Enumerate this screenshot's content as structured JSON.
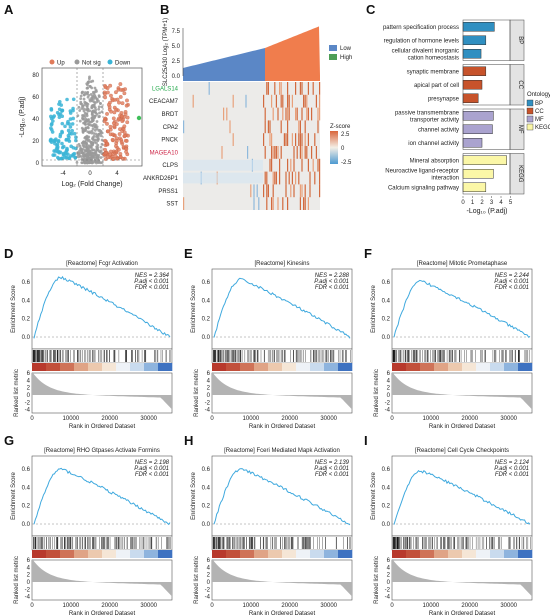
{
  "panels": {
    "A": {
      "label": "A"
    },
    "B": {
      "label": "B"
    },
    "C": {
      "label": "C"
    },
    "D": {
      "label": "D"
    },
    "E": {
      "label": "E"
    },
    "F": {
      "label": "F"
    },
    "G": {
      "label": "G"
    },
    "H": {
      "label": "H"
    },
    "I": {
      "label": "I"
    }
  },
  "volcano": {
    "legend": [
      "Up",
      "Not sig",
      "Down"
    ],
    "colors": {
      "up": "#e07b5a",
      "notsig": "#9a9a9a",
      "down": "#39b4d6"
    },
    "xlabel": "Log₂ (Fold Change)",
    "ylabel": "-Log₁₀ (P.adj)",
    "xticks": [
      "-4",
      "0",
      "4"
    ],
    "yticks": [
      "0",
      "20",
      "40",
      "60",
      "80"
    ]
  },
  "heatmap": {
    "top_ylabel": "SLC25A30 Log₂ (TPM+1)",
    "top_yticks": [
      "0.0",
      "2.5",
      "5.0",
      "7.5"
    ],
    "legend": [
      {
        "label": "Low",
        "color": "#5b87c6"
      },
      {
        "label": "High",
        "color": "#f07d4d"
      }
    ],
    "genes": [
      {
        "name": "LGALS14",
        "color": "#22a84a"
      },
      {
        "name": "CEACAM7",
        "color": "#222222"
      },
      {
        "name": "BRDT",
        "color": "#222222"
      },
      {
        "name": "CPA2",
        "color": "#222222"
      },
      {
        "name": "PNCK",
        "color": "#222222"
      },
      {
        "name": "MAGEA10",
        "color": "#cc2244"
      },
      {
        "name": "CLPS",
        "color": "#222222"
      },
      {
        "name": "ANKRD26P1",
        "color": "#222222"
      },
      {
        "name": "PRSS1",
        "color": "#222222"
      },
      {
        "name": "SST",
        "color": "#222222"
      }
    ],
    "zscore_title": "Z-score",
    "zscore_ticks": [
      "2.5",
      "0",
      "-2.5"
    ]
  },
  "enrichment": {
    "chart_data": {
      "type": "bar",
      "xlabel": "-Log₁₀ (P.adj)",
      "xticks": [
        "0",
        "1",
        "2",
        "3",
        "4",
        "5"
      ],
      "xlim": [
        0,
        5
      ],
      "groups": [
        {
          "name": "BP",
          "color": "#2f8fc1",
          "items": [
            {
              "term": "pattern specification process",
              "value": 3.3
            },
            {
              "term": "regulation of hormone levels",
              "value": 2.4
            },
            {
              "term": "cellular divalent inorganic cation homeostasis",
              "value": 1.9
            }
          ]
        },
        {
          "name": "CC",
          "color": "#c7532b",
          "items": [
            {
              "term": "synaptic membrane",
              "value": 2.4
            },
            {
              "term": "apical part of cell",
              "value": 2.0
            },
            {
              "term": "presynapse",
              "value": 1.6
            }
          ]
        },
        {
          "name": "MF",
          "color": "#aaa3cf",
          "items": [
            {
              "term": "passive transmembrane transporter activity",
              "value": 3.2
            },
            {
              "term": "channel activity",
              "value": 3.1
            },
            {
              "term": "ion channel activity",
              "value": 2.0
            }
          ]
        },
        {
          "name": "KEGG",
          "color": "#fbf7a7",
          "items": [
            {
              "term": "Mineral absorption",
              "value": 4.6
            },
            {
              "term": "Neuroactive ligand-receptor interaction",
              "value": 3.2
            },
            {
              "term": "Calcium signaling pathway",
              "value": 2.4
            }
          ]
        }
      ],
      "legend_title": "Ontology"
    }
  },
  "gsea_common": {
    "es_ylabel": "Enrichment Score",
    "rm_ylabel": "Ranked list metric",
    "xlabel": "Rank in Ordered Dataset",
    "xticks": [
      "0",
      "10000",
      "20000",
      "30000"
    ],
    "es_yticks": [
      "0.0",
      "0.2",
      "0.4",
      "0.6"
    ],
    "rm_yticks": [
      "6",
      "4",
      "2",
      "0",
      "-2",
      "-4"
    ],
    "line_color": "#3fa9de"
  },
  "gsea": [
    {
      "id": "D",
      "title": "[Reactome] Fcgr Activation",
      "nes": "NES = 2.364",
      "padj": "P.adj < 0.001",
      "fdr": "FDR < 0.001",
      "peak": 0.65
    },
    {
      "id": "E",
      "title": "[Reactome] Kinesins",
      "nes": "NES = 2.288",
      "padj": "P.adj < 0.001",
      "fdr": "FDR < 0.001",
      "peak": 0.63
    },
    {
      "id": "F",
      "title": "[Reactome] Mitotic Prometaphase",
      "nes": "NES = 2.244",
      "padj": "P.adj < 0.001",
      "fdr": "FDR < 0.001",
      "peak": 0.61
    },
    {
      "id": "G",
      "title": "[Reactome] RHO Gtpases Activate Formins",
      "nes": "NES = 2.198",
      "padj": "P.adj < 0.001",
      "fdr": "FDR < 0.001",
      "peak": 0.6
    },
    {
      "id": "H",
      "title": "[Reactome] Fceri Mediated Mapk Activation",
      "nes": "NES = 2.139",
      "padj": "P.adj < 0.001",
      "fdr": "FDR < 0.001",
      "peak": 0.6
    },
    {
      "id": "I",
      "title": "[Reactome] Cell Cycle Checkpoints",
      "nes": "NES = 2.124",
      "padj": "P.adj < 0.001",
      "fdr": "FDR < 0.001",
      "peak": 0.58
    }
  ]
}
